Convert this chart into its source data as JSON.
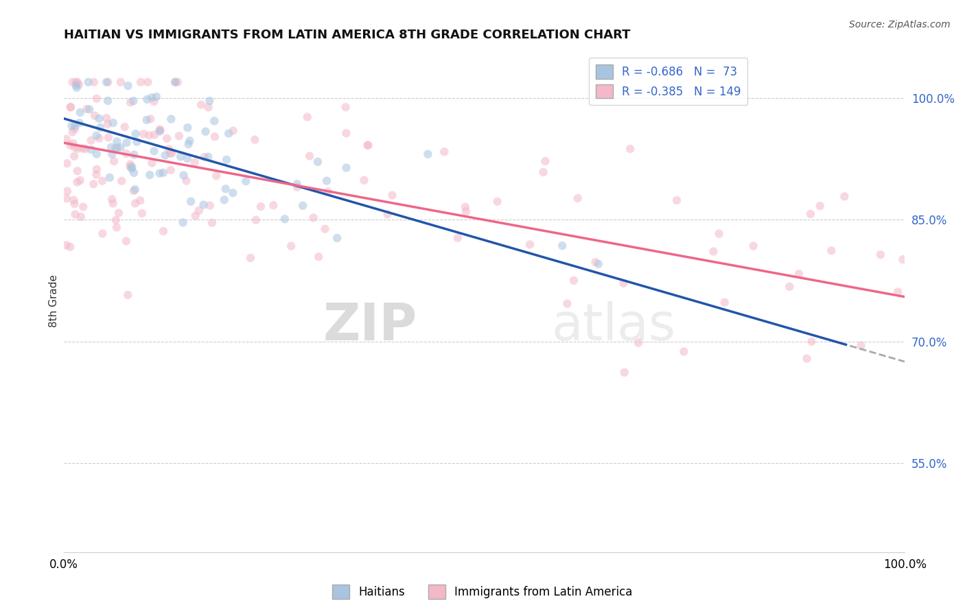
{
  "title": "HAITIAN VS IMMIGRANTS FROM LATIN AMERICA 8TH GRADE CORRELATION CHART",
  "source": "Source: ZipAtlas.com",
  "ylabel": "8th Grade",
  "legend_blue_label": "R = -0.686   N =  73",
  "legend_pink_label": "R = -0.385   N = 149",
  "blue_color": "#a8c4e0",
  "pink_color": "#f4b8c8",
  "blue_line_color": "#2255aa",
  "pink_line_color": "#ee6688",
  "dashed_line_color": "#aaaaaa",
  "watermark_zip": "ZIP",
  "watermark_atlas": "atlas",
  "background_color": "#ffffff",
  "scatter_alpha": 0.55,
  "scatter_size": 80,
  "xlim": [
    0.0,
    1.0
  ],
  "ylim": [
    0.44,
    1.06
  ],
  "y_tick_vals": [
    0.55,
    0.7,
    0.85,
    1.0
  ],
  "y_tick_labels": [
    "55.0%",
    "70.0%",
    "85.0%",
    "100.0%"
  ],
  "blue_slope": -0.3,
  "blue_intercept": 0.975,
  "pink_slope": -0.19,
  "pink_intercept": 0.945,
  "n_blue": 73,
  "n_pink": 149
}
